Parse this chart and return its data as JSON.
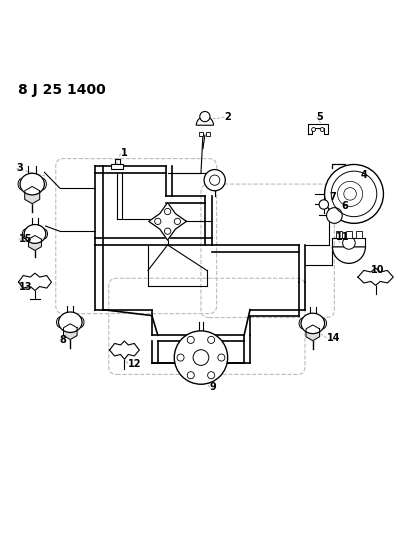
{
  "title": "8 J 25 1400",
  "bg_color": "#ffffff",
  "line_color": "#000000",
  "dashed_color": "#aaaaaa",
  "label_color": "#000000"
}
